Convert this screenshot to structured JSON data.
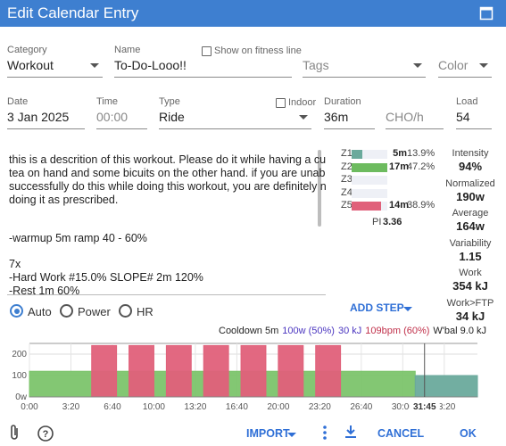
{
  "header": {
    "title": "Edit Calendar Entry"
  },
  "form": {
    "category": {
      "label": "Category",
      "value": "Workout"
    },
    "name": {
      "label": "Name",
      "value": "To-Do-Looo!!"
    },
    "show_on_fitness_line": {
      "label": "Show on fitness line",
      "checked": false
    },
    "tags": {
      "placeholder": "Tags"
    },
    "color": {
      "placeholder": "Color"
    },
    "date": {
      "label": "Date",
      "value": "3 Jan 2025"
    },
    "time": {
      "label": "Time",
      "placeholder": "00:00"
    },
    "type": {
      "label": "Type",
      "value": "Ride"
    },
    "indoor": {
      "label": "Indoor",
      "checked": false
    },
    "duration": {
      "label": "Duration",
      "value": "36m"
    },
    "cho": {
      "placeholder": "CHO/h"
    },
    "load": {
      "label": "Load",
      "value": "54"
    }
  },
  "description": {
    "paragraphs": [
      [
        "this is a descrition of this workout. Please do it while having a cup of",
        "tea on hand and some bicuits on the other hand. if you are unable to",
        "successfully do this while doing this workout, you are definitely not",
        "doing it as prescribed."
      ],
      [
        "-warmup 5m ramp 40 - 60%"
      ],
      [
        "7x",
        "-Hard Work #15.0% SLOPE# 2m 120%",
        "-Rest 1m 60%"
      ]
    ]
  },
  "zones": [
    {
      "name": "Z1",
      "time": "5m",
      "percent": 13.9,
      "percent_label": "13.9%",
      "color": "#6aaa9c"
    },
    {
      "name": "Z2",
      "time": "17m",
      "percent": 47.2,
      "percent_label": "47.2%",
      "color": "#6dbb5f"
    },
    {
      "name": "Z3",
      "percent": 0,
      "color": "#e0c85a"
    },
    {
      "name": "Z4",
      "percent": 0,
      "color": "#e8994f"
    },
    {
      "name": "Z5",
      "time": "14m",
      "percent": 38.9,
      "percent_label": "38.9%",
      "color": "#e0607a"
    }
  ],
  "pi": {
    "label": "PI",
    "value": "3.36"
  },
  "stats": [
    {
      "label": "Intensity",
      "value": "94%"
    },
    {
      "label": "Normalized",
      "value": "190w"
    },
    {
      "label": "Average",
      "value": "164w"
    },
    {
      "label": "Variability",
      "value": "1.15"
    },
    {
      "label": "Work",
      "value": "354 kJ"
    },
    {
      "label": "Work>FTP",
      "value": "34 kJ"
    }
  ],
  "mode": {
    "options": [
      "Auto",
      "Power",
      "HR"
    ],
    "selected": 0
  },
  "add_step": "ADD STEP",
  "step_info": [
    {
      "text": "Cooldown 5m",
      "color": "#222222"
    },
    {
      "text": "100w (50%)",
      "color": "#4b36c0"
    },
    {
      "text": "30 kJ",
      "color": "#4b36c0"
    },
    {
      "text": "109bpm (60%)",
      "color": "#c0304a"
    },
    {
      "text": "W'bal 9.0 kJ",
      "color": "#222222"
    }
  ],
  "workout_chart": {
    "xlim": [
      0,
      2160
    ],
    "ylim": [
      0,
      250
    ],
    "yticks": [
      {
        "value": 0,
        "label": "0w"
      },
      100,
      200
    ],
    "xticks": [
      {
        "value": 0,
        "label": "0:00"
      },
      {
        "value": 200,
        "label": "3:20"
      },
      {
        "value": 400,
        "label": "6:40"
      },
      {
        "value": 600,
        "label": "10:00"
      },
      {
        "value": 800,
        "label": "13:20"
      },
      {
        "value": 1000,
        "label": "16:40"
      },
      {
        "value": 1200,
        "label": "20:00"
      },
      {
        "value": 1400,
        "label": "23:20"
      },
      {
        "value": 1600,
        "label": "26:40"
      },
      {
        "value": 1800,
        "label": "30:00"
      },
      {
        "value": 2000,
        "label": "33:20"
      }
    ],
    "steps": [
      {
        "start": 0,
        "end": 1860,
        "watts": 120,
        "color": "#7cc46b"
      },
      {
        "start": 300,
        "end": 420,
        "watts": 240,
        "color": "#e0607a"
      },
      {
        "start": 480,
        "end": 600,
        "watts": 240,
        "color": "#e0607a"
      },
      {
        "start": 660,
        "end": 780,
        "watts": 240,
        "color": "#e0607a"
      },
      {
        "start": 840,
        "end": 960,
        "watts": 240,
        "color": "#e0607a"
      },
      {
        "start": 1020,
        "end": 1140,
        "watts": 240,
        "color": "#e0607a"
      },
      {
        "start": 1200,
        "end": 1320,
        "watts": 240,
        "color": "#e0607a"
      },
      {
        "start": 1380,
        "end": 1500,
        "watts": 240,
        "color": "#e0607a"
      },
      {
        "start": 1860,
        "end": 2160,
        "watts": 100,
        "color": "#6aaa9c"
      }
    ],
    "cursor": {
      "value": 1905,
      "label": "31:45"
    }
  },
  "footer": {
    "import": "IMPORT",
    "cancel": "CANCEL",
    "ok": "OK"
  }
}
